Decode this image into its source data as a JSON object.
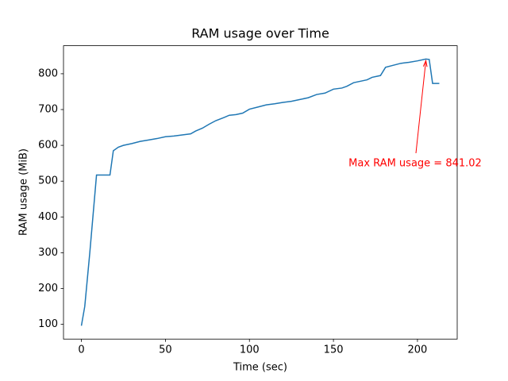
{
  "chart_data": {
    "type": "line",
    "title": "RAM usage over Time",
    "xlabel": "Time (sec)",
    "ylabel": "RAM usage (MiB)",
    "x": [
      0,
      2,
      5,
      9,
      17,
      19,
      22,
      25,
      30,
      35,
      40,
      45,
      50,
      55,
      60,
      65,
      68,
      72,
      76,
      80,
      85,
      88,
      92,
      96,
      100,
      105,
      110,
      115,
      120,
      125,
      130,
      135,
      140,
      145,
      150,
      155,
      158,
      162,
      167,
      170,
      173,
      178,
      181,
      185,
      190,
      195,
      200,
      205,
      207,
      209,
      213
    ],
    "values": [
      96,
      150,
      300,
      517,
      517,
      585,
      595,
      600,
      605,
      611,
      615,
      619,
      624,
      626,
      629,
      632,
      640,
      648,
      659,
      669,
      678,
      684,
      686,
      690,
      701,
      707,
      713,
      716,
      720,
      723,
      728,
      733,
      742,
      746,
      757,
      760,
      765,
      775,
      780,
      783,
      790,
      795,
      818,
      823,
      829,
      832,
      836,
      841.02,
      840,
      773,
      773
    ],
    "color": "#1f77b4",
    "xlim": [
      -10.65,
      223.65
    ],
    "xticks": [
      0,
      50,
      100,
      150,
      200
    ],
    "ylim": [
      58.8,
      878.3
    ],
    "yticks": [
      100,
      200,
      300,
      400,
      500,
      600,
      700,
      800
    ],
    "grid": false,
    "annotation": "Max RAM usage = 841.02",
    "annotation_color": "red"
  }
}
